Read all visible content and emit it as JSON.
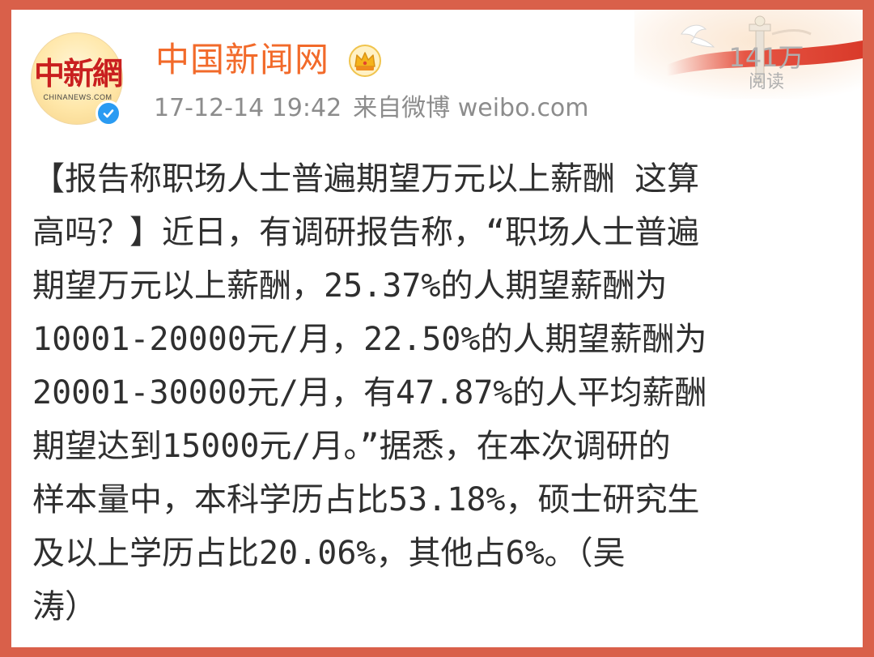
{
  "post": {
    "author": {
      "name": "中国新闻网",
      "avatar_text": "中新網",
      "avatar_subtext": "CHINANEWS.COM",
      "verified_icon": "verified-check-icon",
      "badge_icon": "crown-icon"
    },
    "timestamp": "17-12-14 19:42",
    "source": "来自微博 weibo.com",
    "read_count": "141万",
    "read_label": "阅读",
    "body": "【报告称职场人士普遍期望万元以上薪酬 这算\n高吗？】近日，有调研报告称，“职场人士普遍\n期望万元以上薪酬，25.37%的人期望薪酬为\n10001-20000元/月，22.50%的人期望薪酬为\n20001-30000元/月，有47.87%的人平均薪酬\n期望达到15000元/月。”据悉，在本次调研的\n样本量中，本科学历占比53.18%，硕士研究生\n及以上学历占比20.06%，其他占6%。（吴\n涛）"
  },
  "colors": {
    "frame_border": "#d9604a",
    "username": "#f26a2a",
    "meta_text": "#8c8c8c",
    "body_text": "#2f2f2f",
    "verified_blue": "#2a9bf2",
    "crown_gold": "#f5b31c"
  }
}
